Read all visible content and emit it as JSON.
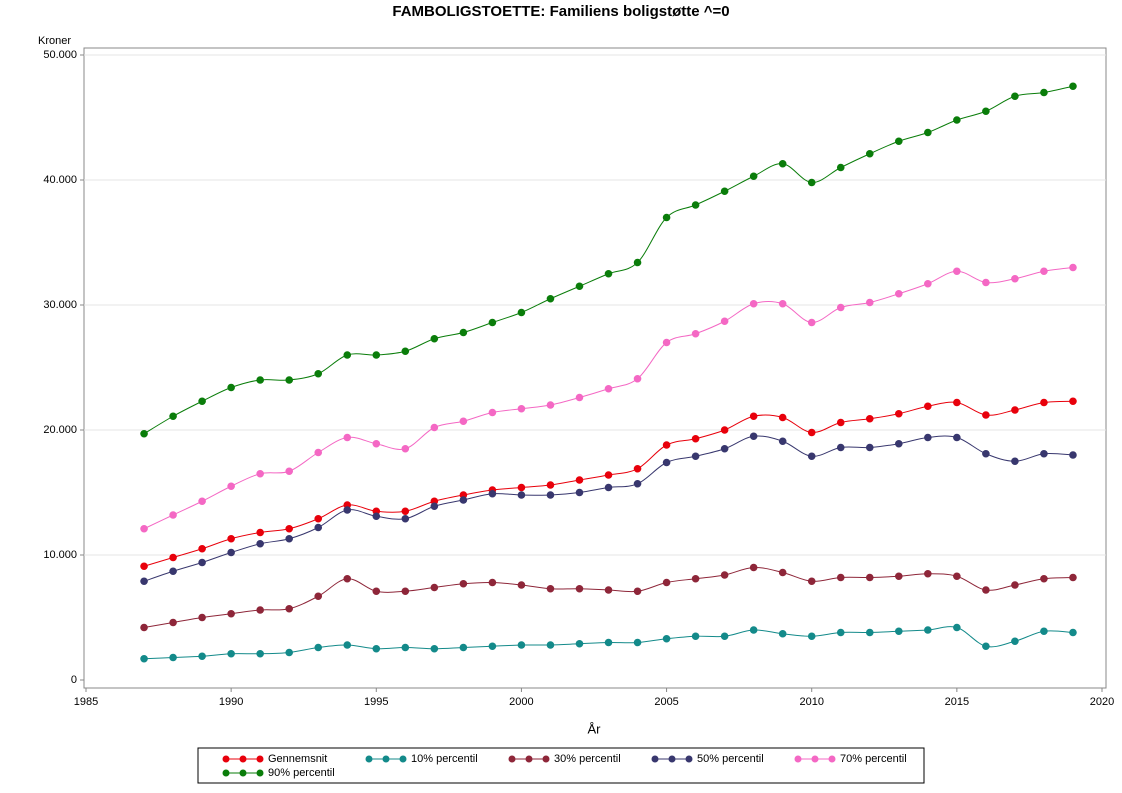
{
  "chart_data": {
    "type": "line",
    "title": "FAMBOLIGSTOETTE: Familiens boligstøtte ^=0",
    "y_label": "Kroner",
    "x_label": "År",
    "x": [
      1987,
      1988,
      1989,
      1990,
      1991,
      1992,
      1993,
      1994,
      1995,
      1996,
      1997,
      1998,
      1999,
      2000,
      2001,
      2002,
      2003,
      2004,
      2005,
      2006,
      2007,
      2008,
      2009,
      2010,
      2011,
      2012,
      2013,
      2014,
      2015,
      2016,
      2017,
      2018,
      2019
    ],
    "xlim": [
      1985,
      2020
    ],
    "xticks": [
      1985,
      1990,
      1995,
      2000,
      2005,
      2010,
      2015,
      2020
    ],
    "ylim": [
      0,
      50000
    ],
    "yticks": [
      0,
      {
        "value": 10000,
        "label": "10.000"
      },
      {
        "value": 20000,
        "label": "20.000"
      },
      {
        "value": 30000,
        "label": "30.000"
      },
      {
        "value": 40000,
        "label": "40.000"
      },
      {
        "value": 50000,
        "label": "50.000"
      }
    ],
    "grid": true,
    "legend": "bottom",
    "series": [
      {
        "name": "Gennemsnit",
        "color": "#e8000b",
        "values": [
          9100,
          9800,
          10500,
          11300,
          11800,
          12100,
          12900,
          14000,
          13500,
          13500,
          14300,
          14800,
          15200,
          15400,
          15600,
          16000,
          16400,
          16900,
          18800,
          19300,
          20000,
          21100,
          21000,
          19800,
          20600,
          20900,
          21300,
          21900,
          22200,
          21200,
          21600,
          22200,
          22300
        ]
      },
      {
        "name": "10% percentil",
        "color": "#138a8a",
        "values": [
          1700,
          1800,
          1900,
          2100,
          2100,
          2200,
          2600,
          2800,
          2500,
          2600,
          2500,
          2600,
          2700,
          2800,
          2800,
          2900,
          3000,
          3000,
          3300,
          3500,
          3500,
          4000,
          3700,
          3500,
          3800,
          3800,
          3900,
          4000,
          4200,
          2700,
          3100,
          3900,
          3800
        ]
      },
      {
        "name": "30% percentil",
        "color": "#8e2639",
        "values": [
          4200,
          4600,
          5000,
          5300,
          5600,
          5700,
          6700,
          8100,
          7100,
          7100,
          7400,
          7700,
          7800,
          7600,
          7300,
          7300,
          7200,
          7100,
          7800,
          8100,
          8400,
          9000,
          8600,
          7900,
          8200,
          8200,
          8300,
          8500,
          8300,
          7200,
          7600,
          8100,
          8200
        ]
      },
      {
        "name": "50% percentil",
        "color": "#38376e",
        "values": [
          7900,
          8700,
          9400,
          10200,
          10900,
          11300,
          12200,
          13600,
          13100,
          12900,
          13900,
          14400,
          14900,
          14800,
          14800,
          15000,
          15400,
          15700,
          17400,
          17900,
          18500,
          19500,
          19100,
          17900,
          18600,
          18600,
          18900,
          19400,
          19400,
          18100,
          17500,
          18100,
          18000
        ]
      },
      {
        "name": "70% percentil",
        "color": "#f468c4",
        "values": [
          12100,
          13200,
          14300,
          15500,
          16500,
          16700,
          18200,
          19400,
          18900,
          18500,
          20200,
          20700,
          21400,
          21700,
          22000,
          22600,
          23300,
          24100,
          27000,
          27700,
          28700,
          30100,
          30100,
          28600,
          29800,
          30200,
          30900,
          31700,
          32700,
          31800,
          32100,
          32700,
          33000
        ]
      },
      {
        "name": "90% percentil",
        "color": "#0a7d0a",
        "values": [
          19700,
          21100,
          22300,
          23400,
          24000,
          24000,
          24500,
          26000,
          26000,
          26300,
          27300,
          27800,
          28600,
          29400,
          30500,
          31500,
          32500,
          33400,
          37000,
          38000,
          39100,
          40300,
          41300,
          39800,
          41000,
          42100,
          43100,
          43800,
          44800,
          45500,
          46700,
          47000,
          47500
        ]
      }
    ]
  }
}
